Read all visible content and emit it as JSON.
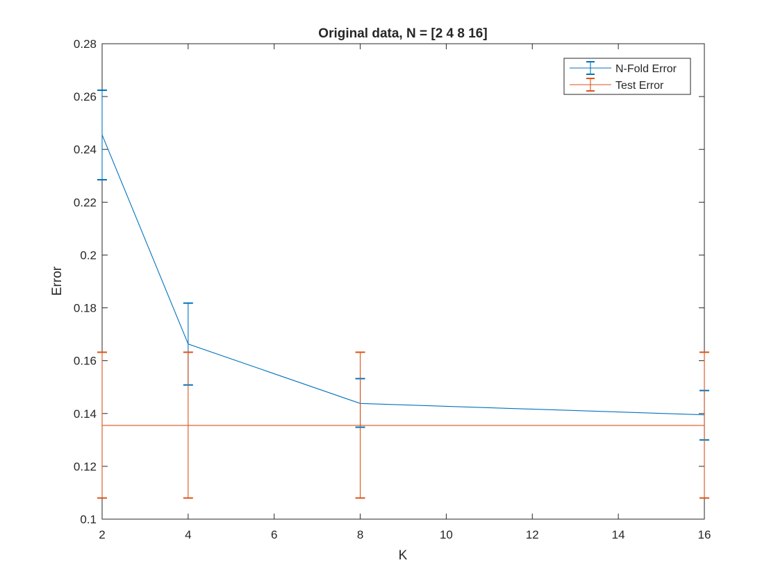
{
  "chart_data": {
    "type": "line",
    "title": "Original data, N = [2 4 8 16]",
    "xlabel": "K",
    "ylabel": "Error",
    "xlim": [
      2,
      16
    ],
    "ylim": [
      0.1,
      0.28
    ],
    "xticks": [
      2,
      4,
      6,
      8,
      10,
      12,
      14,
      16
    ],
    "yticks": [
      0.1,
      0.12,
      0.14,
      0.16,
      0.18,
      0.2,
      0.22,
      0.24,
      0.26,
      0.28
    ],
    "grid": false,
    "legend_position": "top-right",
    "series": [
      {
        "name": "N-Fold Error",
        "color": "#0072BD",
        "x": [
          2,
          4,
          8,
          16
        ],
        "y": [
          0.2455,
          0.1663,
          0.1438,
          0.1395
        ],
        "err_low": [
          0.2285,
          0.1508,
          0.1348,
          0.13
        ],
        "err_high": [
          0.2624,
          0.1818,
          0.1532,
          0.1487
        ]
      },
      {
        "name": "Test Error",
        "color": "#D95319",
        "x": [
          2,
          4,
          8,
          16
        ],
        "y": [
          0.1355,
          0.1355,
          0.1355,
          0.1355
        ],
        "err_low": [
          0.108,
          0.108,
          0.108,
          0.108
        ],
        "err_high": [
          0.1632,
          0.1632,
          0.1632,
          0.1632
        ]
      }
    ]
  }
}
